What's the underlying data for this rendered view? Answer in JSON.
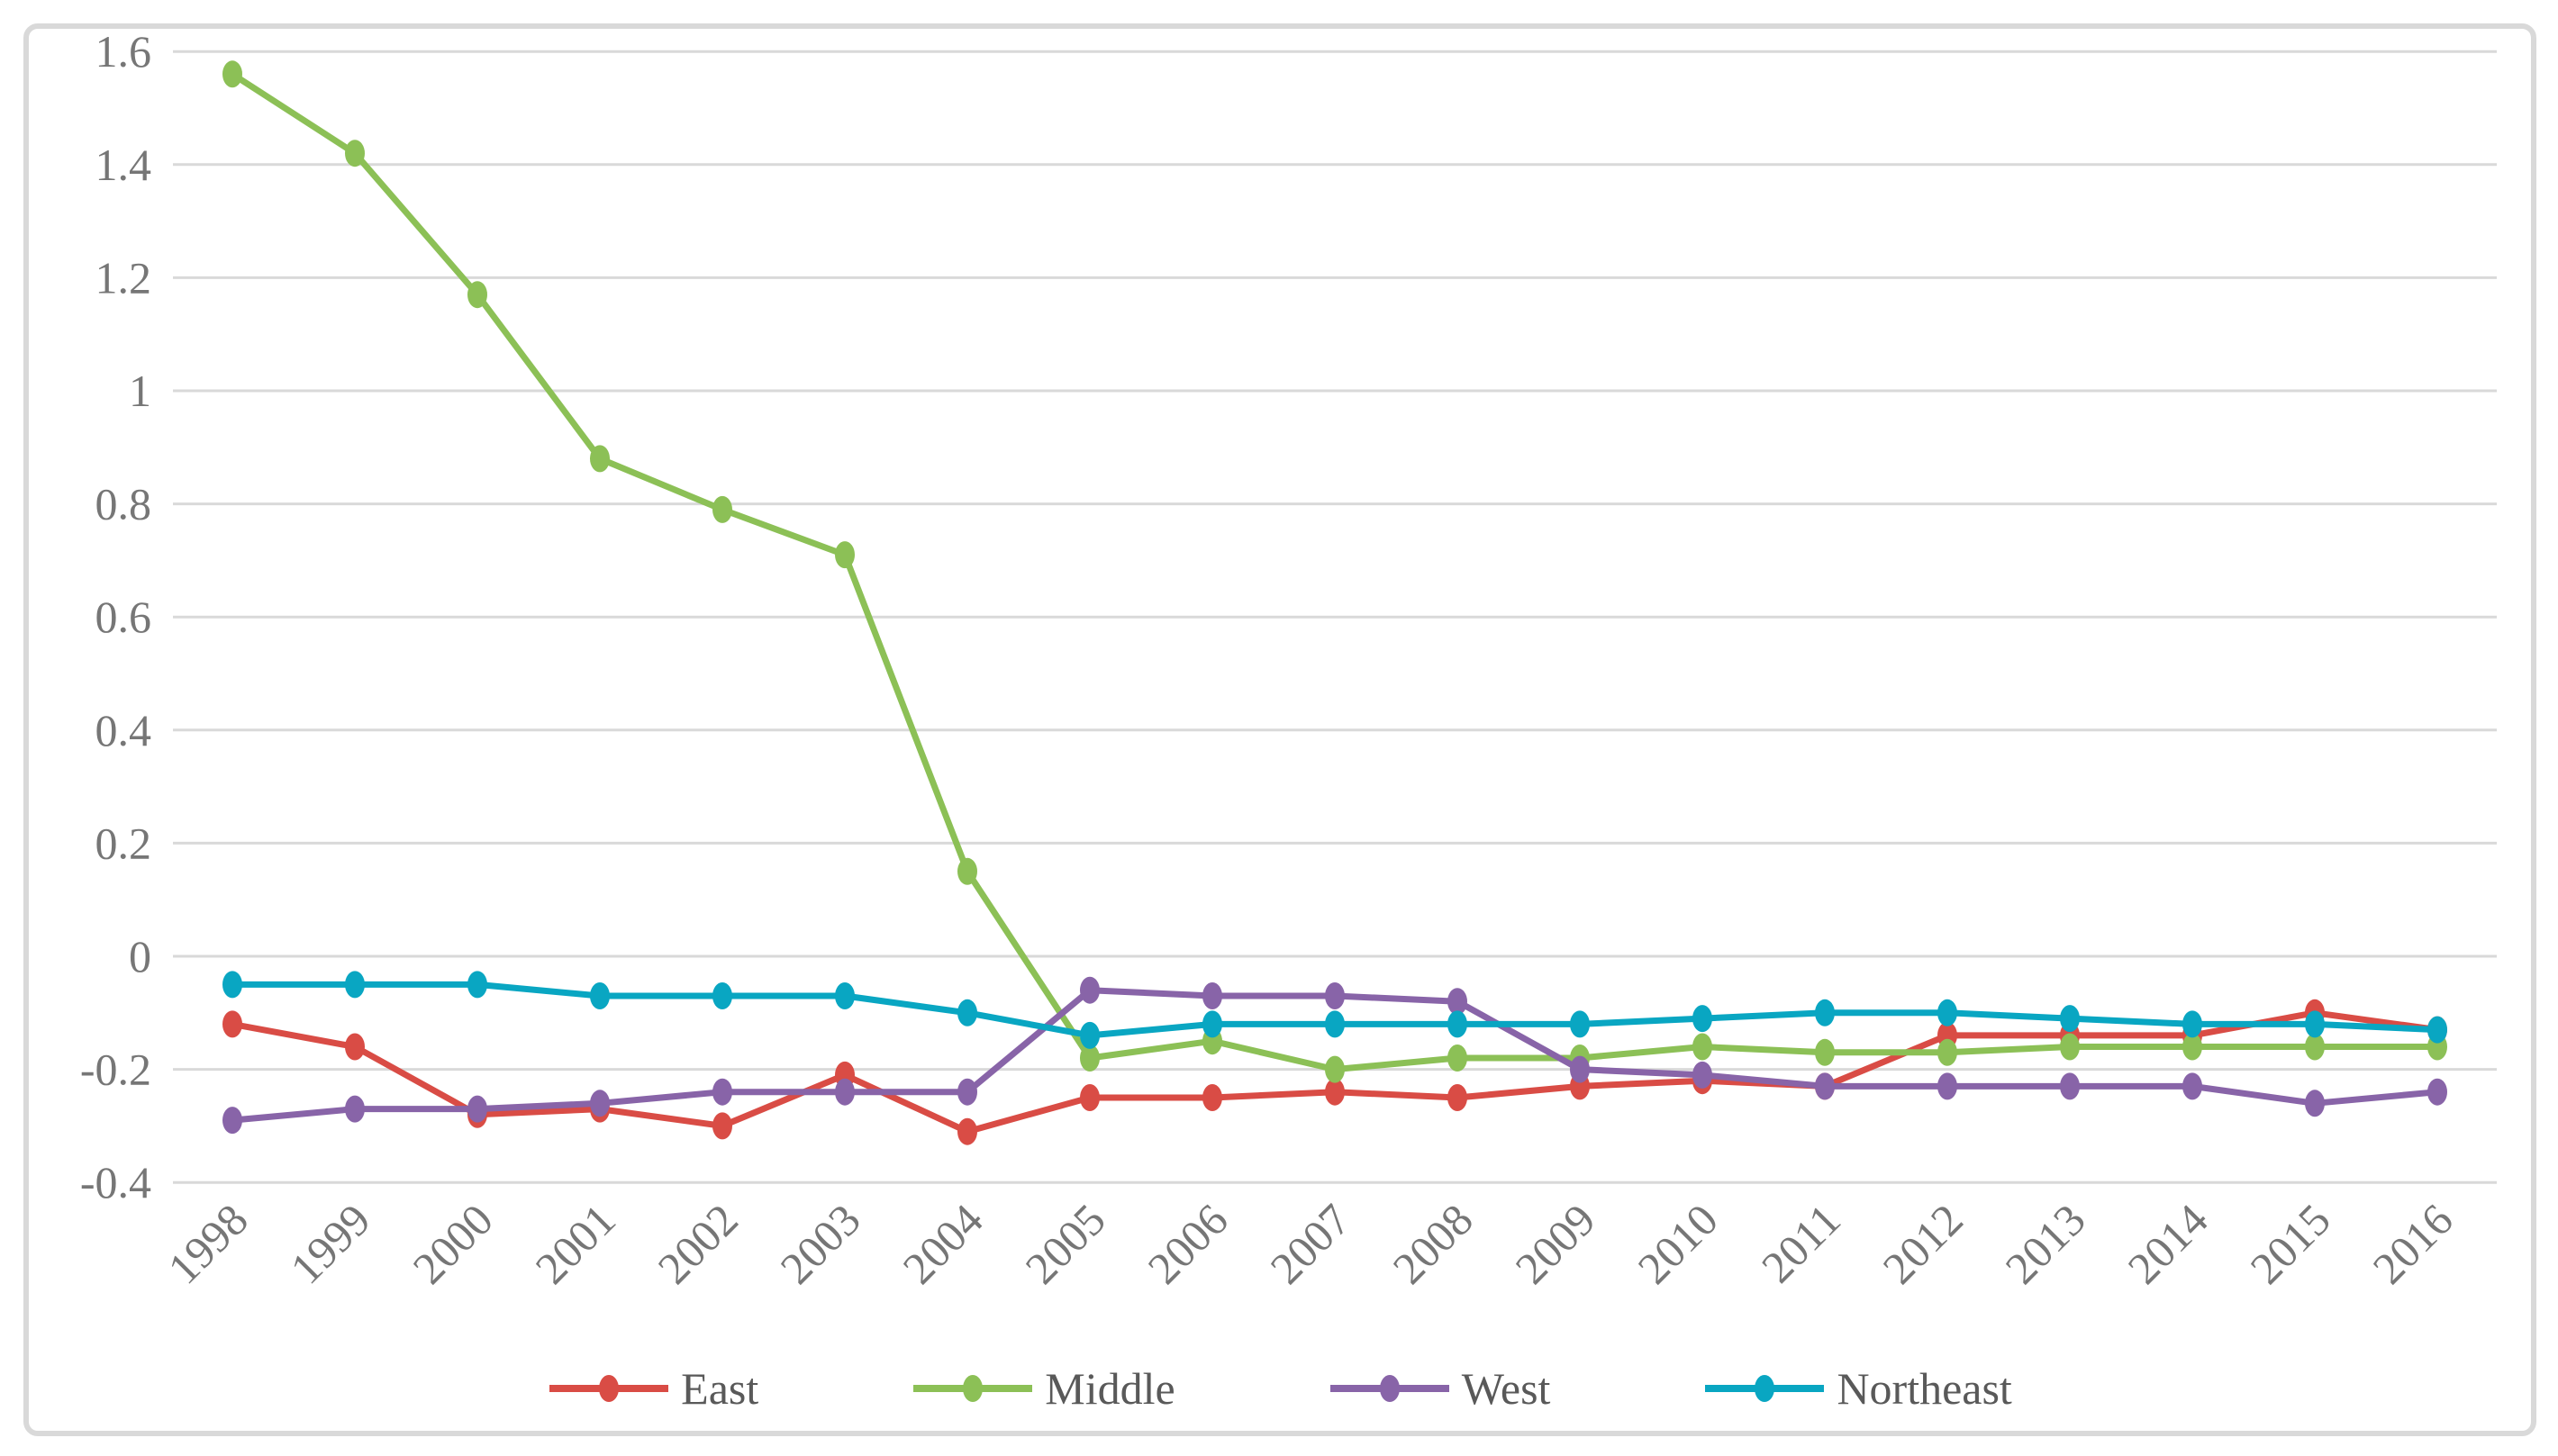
{
  "chart_data": {
    "type": "line",
    "title": "",
    "xlabel": "",
    "ylabel": "",
    "categories": [
      "1998",
      "1999",
      "2000",
      "2001",
      "2002",
      "2003",
      "2004",
      "2005",
      "2006",
      "2007",
      "2008",
      "2009",
      "2010",
      "2011",
      "2012",
      "2013",
      "2014",
      "2015",
      "2016"
    ],
    "series": [
      {
        "name": "East",
        "color": "#D94C45",
        "values": [
          -0.12,
          -0.16,
          -0.28,
          -0.27,
          -0.3,
          -0.21,
          -0.31,
          -0.25,
          -0.25,
          -0.24,
          -0.25,
          -0.23,
          -0.22,
          -0.23,
          -0.14,
          -0.14,
          -0.14,
          -0.1,
          -0.13
        ]
      },
      {
        "name": "Middle",
        "color": "#8CC056",
        "values": [
          1.56,
          1.42,
          1.17,
          0.88,
          0.79,
          0.71,
          0.15,
          -0.18,
          -0.15,
          -0.2,
          -0.18,
          -0.18,
          -0.16,
          -0.17,
          -0.17,
          -0.16,
          -0.16,
          -0.16,
          -0.16
        ]
      },
      {
        "name": "West",
        "color": "#8864A8",
        "values": [
          -0.29,
          -0.27,
          -0.27,
          -0.26,
          -0.24,
          -0.24,
          -0.24,
          -0.06,
          -0.07,
          -0.07,
          -0.08,
          -0.2,
          -0.21,
          -0.23,
          -0.23,
          -0.23,
          -0.23,
          -0.26,
          -0.24
        ]
      },
      {
        "name": "Northeast",
        "color": "#09A6C2",
        "values": [
          -0.05,
          -0.05,
          -0.05,
          -0.07,
          -0.07,
          -0.07,
          -0.1,
          -0.14,
          -0.12,
          -0.12,
          -0.12,
          -0.12,
          -0.11,
          -0.1,
          -0.1,
          -0.11,
          -0.12,
          -0.12,
          -0.13
        ]
      }
    ],
    "ylim": [
      -0.4,
      1.6
    ],
    "ytick_step": 0.2,
    "ytick_labels": [
      "1.6",
      "1.4",
      "1.2",
      "1",
      "0.8",
      "0.6",
      "0.4",
      "0.2",
      "0",
      "-0.2",
      "-0.4"
    ],
    "grid": "horizontal-only",
    "legend_position": "bottom",
    "x_label_rotation_deg": -45
  },
  "styles": {
    "background": "#FFFFFF",
    "frame_color": "#D9D9D9",
    "gridline_color": "#D9D9D9",
    "axis_text_color": "#767676",
    "legend_text_color": "#595959"
  }
}
